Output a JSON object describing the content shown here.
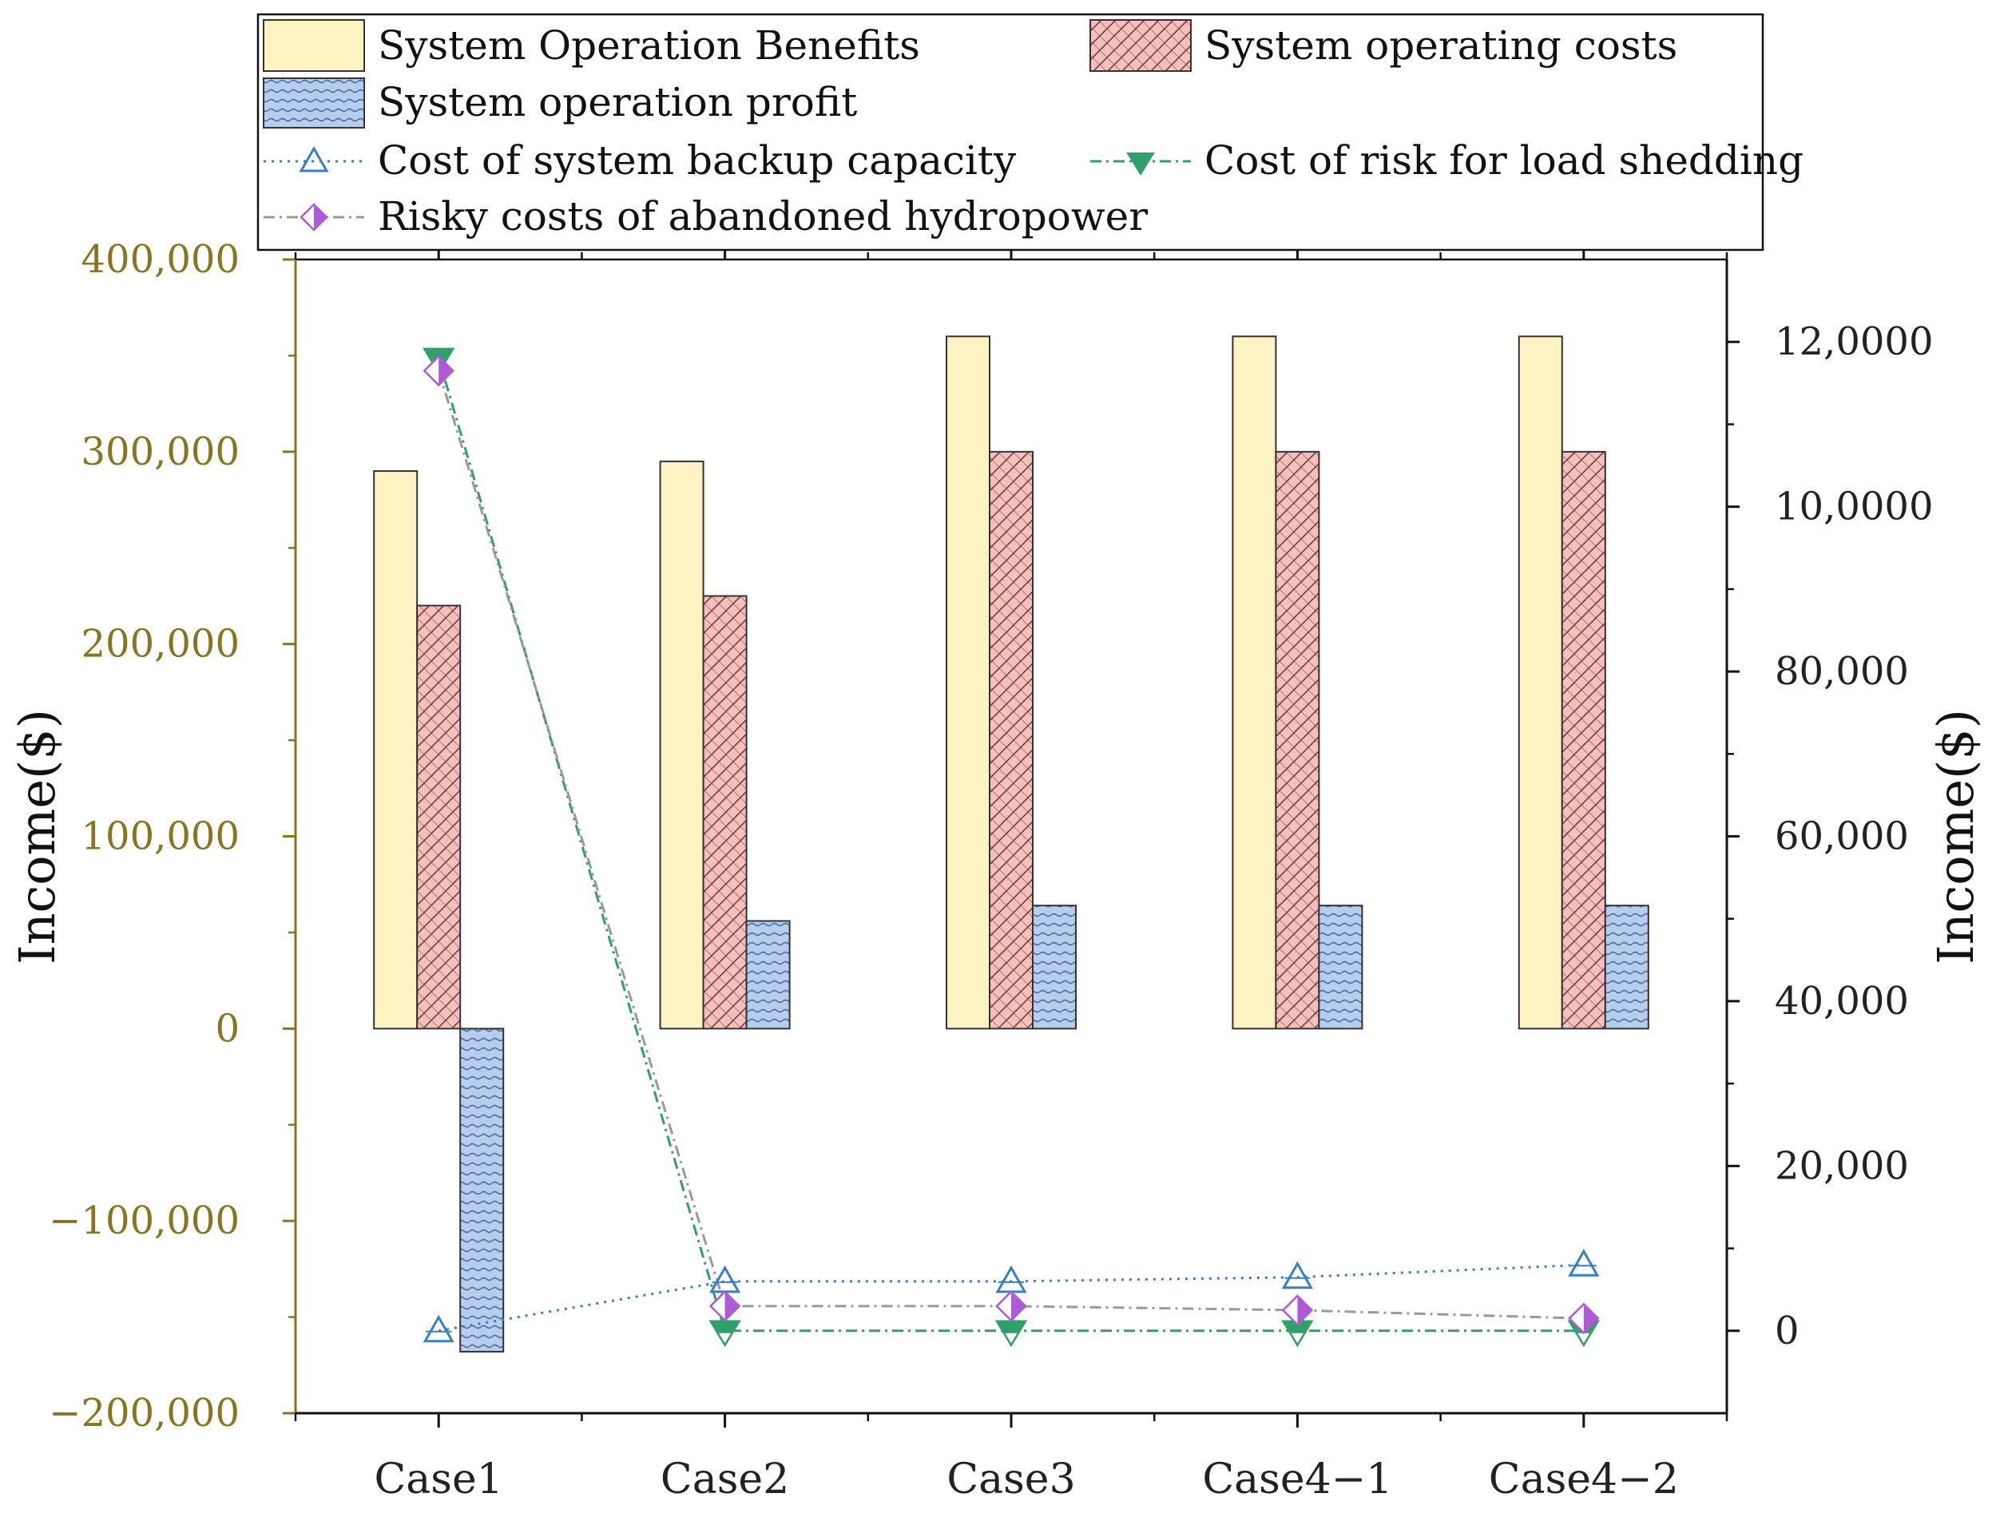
{
  "chart_data": {
    "type": "bar",
    "categories": [
      "Case1",
      "Case2",
      "Case3",
      "Case4−1",
      "Case4−2"
    ],
    "bar_series": [
      {
        "name": "System Operation Benefits",
        "values": [
          290000,
          295000,
          360000,
          360000,
          360000
        ],
        "color": "#fdf3c2",
        "pattern": "none"
      },
      {
        "name": "System operating costs",
        "values": [
          220000,
          225000,
          300000,
          300000,
          300000
        ],
        "color": "#f3c0bd",
        "pattern": "crosshatch"
      },
      {
        "name": "System operation profit",
        "values": [
          -168000,
          56000,
          64000,
          64000,
          64000
        ],
        "color": "#b7cdee",
        "pattern": "horizontal-lines"
      }
    ],
    "line_series": [
      {
        "name": "Cost of system backup capacity",
        "values": [
          0,
          6000,
          6000,
          6500,
          8000
        ],
        "color": "#3a7fc1",
        "marker": "triangle-up-open",
        "dash": "dotted"
      },
      {
        "name": "Cost of risk for load shedding",
        "values": [
          118000,
          0,
          0,
          0,
          0
        ],
        "color": "#2fa06a",
        "marker": "triangle-down-half",
        "dash": "dash-dot"
      },
      {
        "name": "Risky costs of abandoned hydropower",
        "values": [
          116500,
          3000,
          3000,
          2500,
          1500
        ],
        "color": "#b05ad8",
        "marker": "diamond-half",
        "dash": "dash-dot"
      }
    ],
    "y_left": {
      "label": "Income($)",
      "range": [
        -200000,
        400000
      ],
      "ticks": [
        -200000,
        -100000,
        0,
        100000,
        200000,
        300000,
        400000
      ],
      "tick_labels": [
        "−200,000",
        "−100,000",
        "0",
        "100,000",
        "200,000",
        "300,000",
        "400,000"
      ]
    },
    "y_right": {
      "label": "Income($)",
      "range": [
        -10000,
        130000
      ],
      "ticks": [
        0,
        20000,
        40000,
        60000,
        80000,
        100000,
        120000
      ],
      "tick_labels": [
        "0",
        "20,000",
        "40,000",
        "60,000",
        "80,000",
        "10,0000",
        "12,0000"
      ]
    },
    "legend_position": "top",
    "grid": false
  }
}
